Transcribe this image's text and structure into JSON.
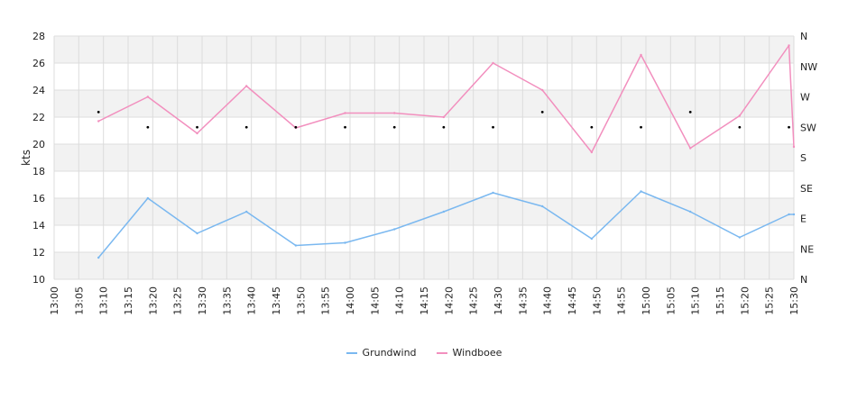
{
  "chart_data": {
    "type": "line",
    "xlabel": "",
    "ylabel": "kts",
    "ylim": [
      10,
      28
    ],
    "y_ticks": [
      10,
      12,
      14,
      16,
      18,
      20,
      22,
      24,
      26,
      28
    ],
    "x_tick_labels": [
      "13:00",
      "13:05",
      "13:10",
      "13:15",
      "13:20",
      "13:25",
      "13:30",
      "13:35",
      "13:40",
      "13:45",
      "13:50",
      "13:55",
      "14:00",
      "14:05",
      "14:10",
      "14:15",
      "14:20",
      "14:25",
      "14:30",
      "14:35",
      "14:40",
      "14:45",
      "14:50",
      "14:55",
      "15:00",
      "15:05",
      "15:10",
      "15:15",
      "15:20",
      "15:25",
      "15:30"
    ],
    "right_axis_labels": [
      "N",
      "NE",
      "E",
      "SE",
      "S",
      "SW",
      "W",
      "NW",
      "N"
    ],
    "grid": true,
    "banded_background": true,
    "legend_position": "bottom",
    "series": [
      {
        "name": "Grundwind",
        "color": "#7ab8f0",
        "x": [
          "13:09",
          "13:19",
          "13:29",
          "13:39",
          "13:49",
          "13:59",
          "14:09",
          "14:19",
          "14:29",
          "14:39",
          "14:49",
          "14:59",
          "15:09",
          "15:19",
          "15:29",
          "15:30"
        ],
        "values": [
          11.6,
          16.0,
          13.4,
          15.0,
          12.5,
          12.7,
          13.7,
          15.0,
          16.4,
          15.4,
          13.0,
          16.5,
          15.0,
          13.1,
          14.8,
          14.8
        ]
      },
      {
        "name": "Windboee",
        "color": "#f28fbe",
        "x": [
          "13:09",
          "13:19",
          "13:29",
          "13:39",
          "13:49",
          "13:59",
          "14:09",
          "14:19",
          "14:29",
          "14:39",
          "14:49",
          "14:59",
          "15:09",
          "15:19",
          "15:29",
          "15:30"
        ],
        "values": [
          21.7,
          23.5,
          20.8,
          24.3,
          21.2,
          22.3,
          22.3,
          22.0,
          26.0,
          24.0,
          19.4,
          26.6,
          19.7,
          22.1,
          27.3,
          19.8
        ]
      }
    ],
    "direction_points": {
      "x": [
        "13:09",
        "13:19",
        "13:29",
        "13:39",
        "13:49",
        "13:59",
        "14:09",
        "14:19",
        "14:29",
        "14:39",
        "14:49",
        "14:59",
        "15:09",
        "15:19",
        "15:29"
      ],
      "values": [
        "WSW",
        "SW",
        "SW",
        "SW",
        "SW",
        "SW",
        "SW",
        "SW",
        "SW",
        "WSW",
        "SW",
        "SW",
        "WSW",
        "SW",
        "SW"
      ]
    }
  }
}
